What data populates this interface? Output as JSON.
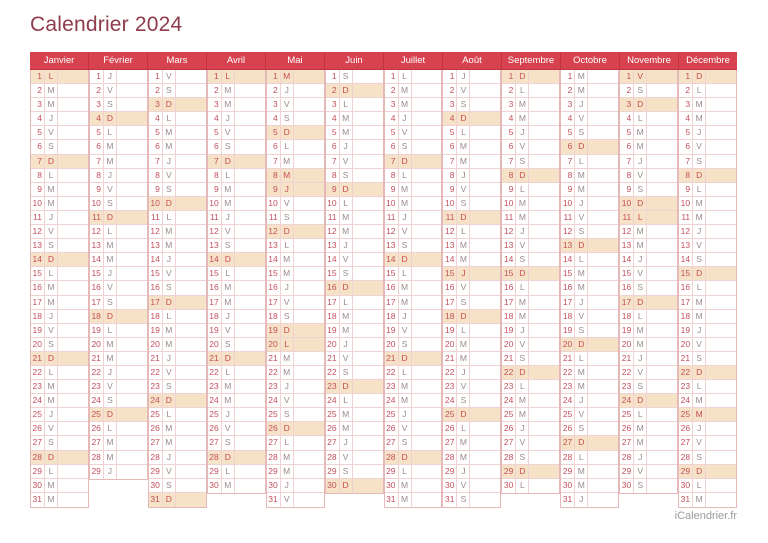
{
  "title": "Calendrier 2024",
  "footer": {
    "brand": "iCalendrier.fr"
  },
  "colors": {
    "title_text": "#8e3b4b",
    "header_background": "#d7424f",
    "header_text": "#ffffff",
    "grid_border": "#e6b9b9",
    "row_border": "#f0d2d2",
    "day_number_text": "#c4505c",
    "day_letter_text": "#9c8a8e",
    "highlight_background": "#f6e2c7",
    "highlight_letter_text": "#c94a57",
    "footer_text": "#9a9a9a"
  },
  "calendar": {
    "year": "2024",
    "months": [
      {
        "name": "Janvier",
        "letters": "LMMJVSDLMMJVSDLMMJVSDLMMJVSDLMM",
        "highlights": [
          1,
          7,
          14,
          21,
          28
        ]
      },
      {
        "name": "Février",
        "letters": "JVSDLMMJVSDLMMJVSDLMMJVSDLMMJ",
        "highlights": [
          4,
          11,
          18,
          25
        ]
      },
      {
        "name": "Mars",
        "letters": "VSDLMMJVSDLMMJVSDLMMJVSDLMMJVSD",
        "highlights": [
          3,
          10,
          17,
          24,
          31
        ]
      },
      {
        "name": "Avril",
        "letters": "LMMJVSDLMMJVSDLMMJVSDLMMJVSDLM",
        "highlights": [
          1,
          7,
          14,
          21,
          28
        ]
      },
      {
        "name": "Mai",
        "letters": "MJVSDLMMJVSDLMMJVSDLMMJVSDLMMJV",
        "highlights": [
          1,
          5,
          8,
          9,
          12,
          19,
          20,
          26
        ]
      },
      {
        "name": "Juin",
        "letters": "SDLMMJVSDLMMJVSDLMMJVSDLMMJVSD",
        "highlights": [
          2,
          9,
          16,
          23,
          30
        ]
      },
      {
        "name": "Juillet",
        "letters": "LMMJVSDLMMJVSDLMMJVSDLMMJVSDLMM",
        "highlights": [
          7,
          14,
          21,
          28
        ]
      },
      {
        "name": "Août",
        "letters": "JVSDLMMJVSDLMMJVSDLMMJVSDLMMJVS",
        "highlights": [
          4,
          11,
          15,
          18,
          25
        ]
      },
      {
        "name": "Septembre",
        "letters": "DLMMJVSDLMMJVSDLMMJVSDLMMJVSDL",
        "highlights": [
          1,
          8,
          15,
          22,
          29
        ]
      },
      {
        "name": "Octobre",
        "letters": "MMJVSDLMMJVSDLMMJVSDLMMJVSDLMMJ",
        "highlights": [
          6,
          13,
          20,
          27
        ]
      },
      {
        "name": "Novembre",
        "letters": "VSDLMMJVSDLMMJVSDLMMJVSDLMMJVS",
        "highlights": [
          1,
          3,
          10,
          11,
          17,
          24
        ]
      },
      {
        "name": "Décembre",
        "letters": "DLMMJVSDLMMJVSDLMMJVSDLMMJVSDLM",
        "highlights": [
          1,
          8,
          15,
          22,
          25,
          29
        ]
      }
    ]
  }
}
